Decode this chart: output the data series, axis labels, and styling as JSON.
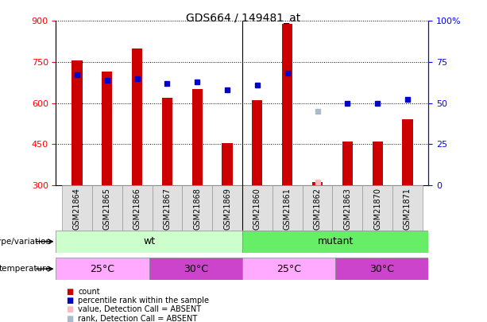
{
  "title": "GDS664 / 149481_at",
  "samples": [
    "GSM21864",
    "GSM21865",
    "GSM21866",
    "GSM21867",
    "GSM21868",
    "GSM21869",
    "GSM21860",
    "GSM21861",
    "GSM21862",
    "GSM21863",
    "GSM21870",
    "GSM21871"
  ],
  "counts": [
    755,
    715,
    800,
    620,
    650,
    455,
    610,
    890,
    310,
    460,
    460,
    540
  ],
  "percentile_ranks": [
    67,
    64,
    65,
    62,
    63,
    58,
    61,
    68,
    null,
    50,
    50,
    52
  ],
  "absent_value": [
    null,
    null,
    null,
    null,
    null,
    null,
    null,
    null,
    310,
    null,
    null,
    null
  ],
  "absent_rank": [
    null,
    null,
    null,
    null,
    null,
    null,
    null,
    null,
    45,
    null,
    null,
    null
  ],
  "ymin": 300,
  "ymax": 900,
  "yticks": [
    300,
    450,
    600,
    750,
    900
  ],
  "y2min": 0,
  "y2max": 100,
  "y2ticks": [
    0,
    25,
    50,
    75,
    100
  ],
  "bar_color": "#cc0000",
  "rank_color": "#0000cc",
  "absent_val_color": "#ffbbbb",
  "absent_rank_color": "#aabbcc",
  "bar_width": 0.35,
  "genotype_wt_color": "#ccffcc",
  "genotype_mutant_color": "#66ee66",
  "temp_25_color": "#ffaaff",
  "temp_30_color": "#cc44cc",
  "wt_count": 6,
  "mutant_count": 6,
  "temp_25_wt_count": 3,
  "temp_30_wt_count": 3,
  "temp_25_mutant_count": 3,
  "temp_30_mutant_count": 3
}
